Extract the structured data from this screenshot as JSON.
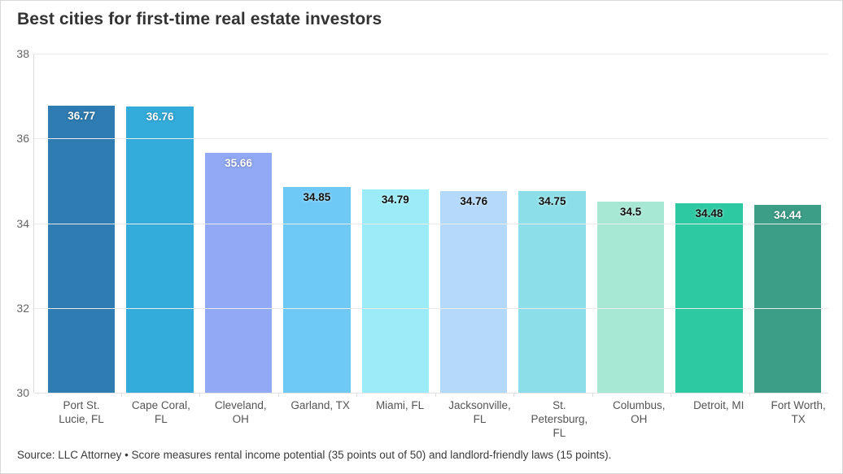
{
  "title": "Best cities for first-time real estate investors",
  "source_note": "Source: LLC Attorney • Score measures rental income potential (35 points out of 50) and landlord-friendly laws (15 points).",
  "chart_data": {
    "type": "bar",
    "title": "Best cities for first-time real estate investors",
    "categories": [
      "Port St. Lucie, FL",
      "Cape Coral, FL",
      "Cleveland, OH",
      "Garland, TX",
      "Miami, FL",
      "Jacksonville, FL",
      "St. Petersburg, FL",
      "Columbus, OH",
      "Detroit, MI",
      "Fort Worth, TX"
    ],
    "values": [
      36.77,
      36.76,
      35.66,
      34.85,
      34.79,
      34.76,
      34.75,
      34.5,
      34.48,
      34.44
    ],
    "value_labels": [
      "36.77",
      "36.76",
      "35.66",
      "34.85",
      "34.79",
      "34.76",
      "34.75",
      "34.5",
      "34.48",
      "34.44"
    ],
    "bar_colors": [
      "#2f7cb2",
      "#34acdb",
      "#92aaf5",
      "#6ec9f7",
      "#9becf8",
      "#b4d9fa",
      "#8cdfe8",
      "#a7e8d4",
      "#2dc9a2",
      "#3d9e88"
    ],
    "value_label_styles": [
      "light",
      "light",
      "light",
      "dark",
      "dark",
      "dark",
      "dark",
      "dark",
      "dark",
      "light"
    ],
    "xlabel": "",
    "ylabel": "",
    "ylim": [
      30,
      38
    ],
    "yticks": [
      38,
      36,
      34,
      32,
      30
    ],
    "grid": "horizontal",
    "legend": "none"
  }
}
